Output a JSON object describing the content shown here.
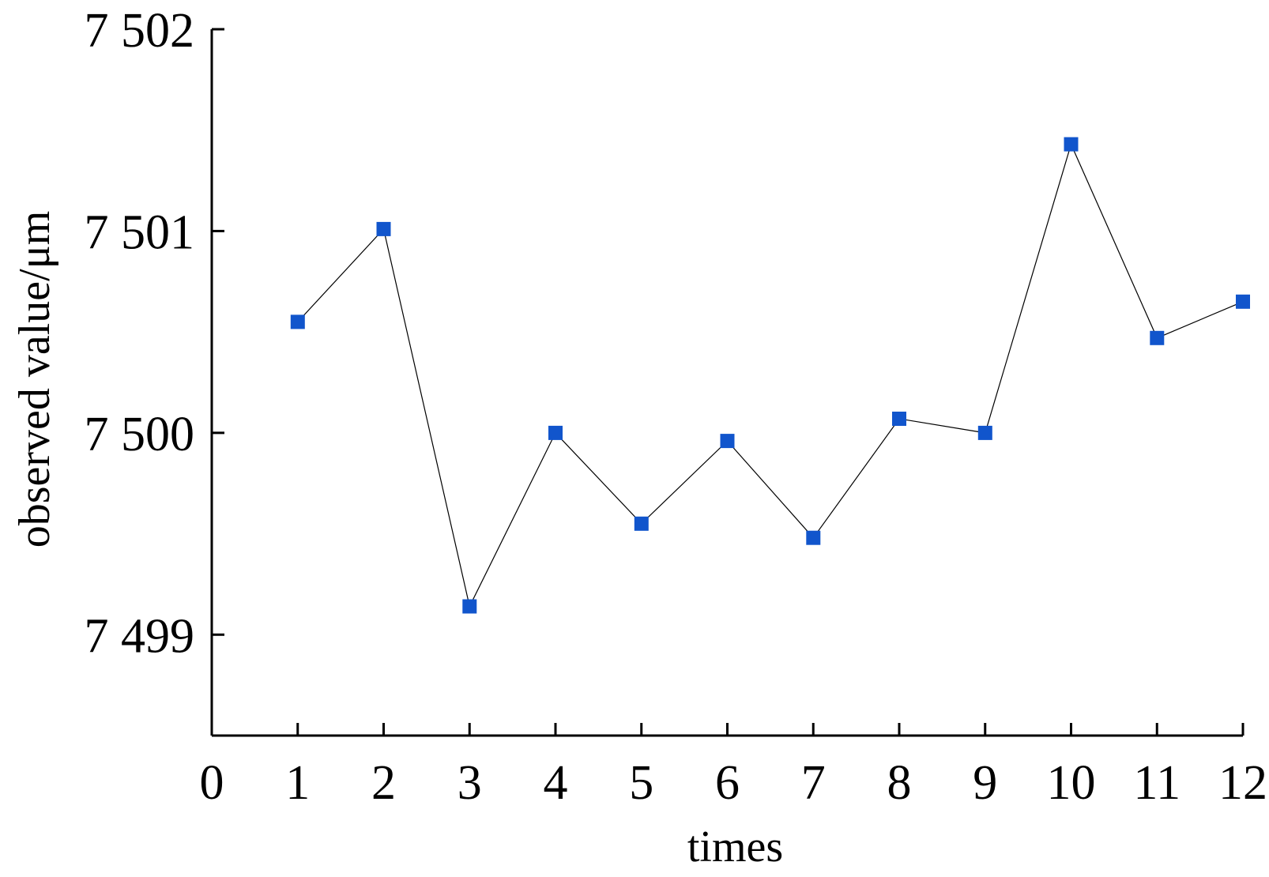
{
  "chart_data": {
    "type": "line",
    "title": "",
    "xlabel": "times",
    "ylabel": "observed value/μm",
    "x": [
      1,
      2,
      3,
      4,
      5,
      6,
      7,
      8,
      9,
      10,
      11,
      12
    ],
    "series": [
      {
        "values": [
          7500.55,
          7501.01,
          7499.14,
          7500.0,
          7499.55,
          7499.96,
          7499.48,
          7500.07,
          7500.0,
          7501.43,
          7500.47,
          7500.65
        ]
      }
    ],
    "xlim": [
      0,
      12
    ],
    "ylim": [
      7498.5,
      7502
    ],
    "x_ticks": [
      0,
      1,
      2,
      3,
      4,
      5,
      6,
      7,
      8,
      9,
      10,
      11,
      12
    ],
    "x_tick_labels": [
      "0",
      "1",
      "2",
      "3",
      "4",
      "5",
      "6",
      "7",
      "8",
      "9",
      "10",
      "11",
      "12"
    ],
    "y_ticks": [
      7499,
      7500,
      7501,
      7502
    ],
    "y_tick_labels": [
      "7 499",
      "7 500",
      "7 501",
      "7 502"
    ],
    "grid": false,
    "legend": "none",
    "marker": "square",
    "marker_color": "#1155cc",
    "line_color": "#000000"
  }
}
